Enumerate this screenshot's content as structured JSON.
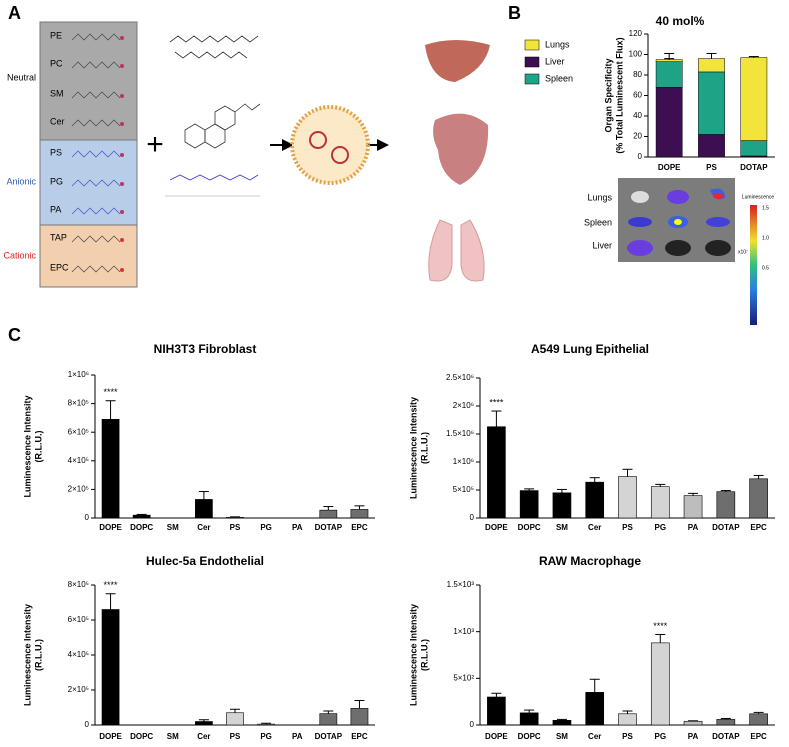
{
  "panel_labels": [
    "A",
    "B",
    "C"
  ],
  "diagram": {
    "groups": [
      {
        "name": "Neutral",
        "items": [
          "PE",
          "PC",
          "SM",
          "Cer"
        ]
      },
      {
        "name": "Anionic",
        "items": [
          "PS",
          "PG",
          "PA"
        ]
      },
      {
        "name": "Cationic",
        "items": [
          "TAP",
          "EPC"
        ]
      }
    ]
  },
  "imaging": {
    "rows": [
      "Lungs",
      "Spleen",
      "Liver"
    ],
    "colorbar_title": "Luminescence",
    "colorbar_labels": [
      "1.5",
      "1.0",
      "0.5"
    ],
    "colorbar_unit": "x10⁷"
  },
  "chart_data": [
    {
      "type": "stacked_bar",
      "title": "40 mol%",
      "ylabel": [
        "Organ Specificity",
        "(% Total Luminescent Flux)"
      ],
      "categories": [
        "DOPE",
        "PS",
        "DOTAP"
      ],
      "series": [
        {
          "name": "Liver",
          "color": "#3d0f52",
          "values": [
            68,
            22,
            1
          ],
          "errors": [
            10,
            6,
            0
          ]
        },
        {
          "name": "Spleen",
          "color": "#1fa386",
          "values": [
            25,
            61,
            15
          ],
          "errors": [
            3,
            3,
            2
          ]
        },
        {
          "name": "Lungs",
          "color": "#f3e43c",
          "values": [
            2,
            13,
            81
          ],
          "errors": [
            6,
            5,
            1
          ]
        }
      ],
      "legend_order": [
        2,
        0,
        1
      ],
      "ylim": [
        0,
        120
      ],
      "yticks": [
        0,
        20,
        40,
        60,
        80,
        100,
        120
      ]
    },
    {
      "type": "bar",
      "title": "NIH3T3 Fibroblast",
      "ylabel": [
        "Luminescence Intensity",
        "(R.L.U.)"
      ],
      "categories": [
        "DOPE",
        "DOPC",
        "SM",
        "Cer",
        "PS",
        "PG",
        "PA",
        "DOTAP",
        "EPC"
      ],
      "values": [
        690000,
        20000,
        0,
        130000,
        5000,
        0,
        0,
        55000,
        60000
      ],
      "errors": [
        130000,
        5000,
        0,
        55000,
        3000,
        0,
        0,
        25000,
        25000
      ],
      "colors": [
        "#000000",
        "#000000",
        "#000000",
        "#000000",
        "#d4d4d4",
        "#d4d4d4",
        "#bdbdbd",
        "#6e6e6e",
        "#6e6e6e"
      ],
      "annotations": [
        {
          "text": "****",
          "category": "DOPE"
        }
      ],
      "ylim": [
        0,
        1000000
      ],
      "yticks": [
        0,
        {
          "value": 200000,
          "label": "2×10⁵"
        },
        {
          "value": 400000,
          "label": "4×10⁵"
        },
        {
          "value": 600000,
          "label": "6×10⁵"
        },
        {
          "value": 800000,
          "label": "8×10⁵"
        },
        {
          "value": 1000000,
          "label": "1×10⁶"
        }
      ]
    },
    {
      "type": "bar",
      "title": "A549 Lung Epithelial",
      "ylabel": [
        "Luminescence Intensity",
        "(R.L.U.)"
      ],
      "categories": [
        "DOPE",
        "DOPC",
        "SM",
        "Cer",
        "PS",
        "PG",
        "PA",
        "DOTAP",
        "EPC"
      ],
      "values": [
        1630000,
        490000,
        450000,
        640000,
        740000,
        560000,
        400000,
        470000,
        700000
      ],
      "errors": [
        280000,
        30000,
        60000,
        80000,
        130000,
        40000,
        40000,
        20000,
        60000
      ],
      "colors": [
        "#000000",
        "#000000",
        "#000000",
        "#000000",
        "#d4d4d4",
        "#d4d4d4",
        "#bdbdbd",
        "#6e6e6e",
        "#6e6e6e"
      ],
      "annotations": [
        {
          "text": "****",
          "category": "DOPE"
        }
      ],
      "ylim": [
        0,
        2500000
      ],
      "yticks": [
        0,
        {
          "value": 500000,
          "label": "5×10⁵"
        },
        {
          "value": 1000000,
          "label": "1×10⁶"
        },
        {
          "value": 1500000,
          "label": "1.5×10⁶"
        },
        {
          "value": 2000000,
          "label": "2×10⁶"
        },
        {
          "value": 2500000,
          "label": "2.5×10⁶"
        }
      ]
    },
    {
      "type": "bar",
      "title": "Hulec-5a Endothelial",
      "ylabel": [
        "Luminescence Intensity",
        "(R.L.U.)"
      ],
      "categories": [
        "DOPE",
        "DOPC",
        "SM",
        "Cer",
        "PS",
        "PG",
        "PA",
        "DOTAP",
        "EPC"
      ],
      "values": [
        660000,
        0,
        0,
        20000,
        70000,
        5000,
        0,
        65000,
        95000
      ],
      "errors": [
        90000,
        0,
        0,
        10000,
        20000,
        5000,
        0,
        15000,
        45000
      ],
      "colors": [
        "#000000",
        "#000000",
        "#000000",
        "#000000",
        "#d4d4d4",
        "#d4d4d4",
        "#bdbdbd",
        "#6e6e6e",
        "#6e6e6e"
      ],
      "annotations": [
        {
          "text": "****",
          "category": "DOPE"
        }
      ],
      "ylim": [
        0,
        800000
      ],
      "yticks": [
        0,
        {
          "value": 200000,
          "label": "2×10⁵"
        },
        {
          "value": 400000,
          "label": "4×10⁵"
        },
        {
          "value": 600000,
          "label": "6×10⁵"
        },
        {
          "value": 800000,
          "label": "8×10⁵"
        }
      ]
    },
    {
      "type": "bar",
      "title": "RAW Macrophage",
      "ylabel": [
        "Luminescence Intensity",
        "(R.L.U.)"
      ],
      "categories": [
        "DOPE",
        "DOPC",
        "SM",
        "Cer",
        "PS",
        "PG",
        "PA",
        "DOTAP",
        "EPC"
      ],
      "values": [
        300,
        130,
        50,
        350,
        120,
        880,
        40,
        60,
        120
      ],
      "errors": [
        40,
        30,
        10,
        140,
        30,
        90,
        5,
        10,
        15
      ],
      "colors": [
        "#000000",
        "#000000",
        "#000000",
        "#000000",
        "#d4d4d4",
        "#d4d4d4",
        "#bdbdbd",
        "#6e6e6e",
        "#6e6e6e"
      ],
      "annotations": [
        {
          "text": "****",
          "category": "PG"
        }
      ],
      "ylim": [
        0,
        1500
      ],
      "yticks": [
        0,
        {
          "value": 500,
          "label": "5×10²"
        },
        {
          "value": 1000,
          "label": "1×10³"
        },
        {
          "value": 1500,
          "label": "1.5×10³"
        }
      ]
    }
  ]
}
